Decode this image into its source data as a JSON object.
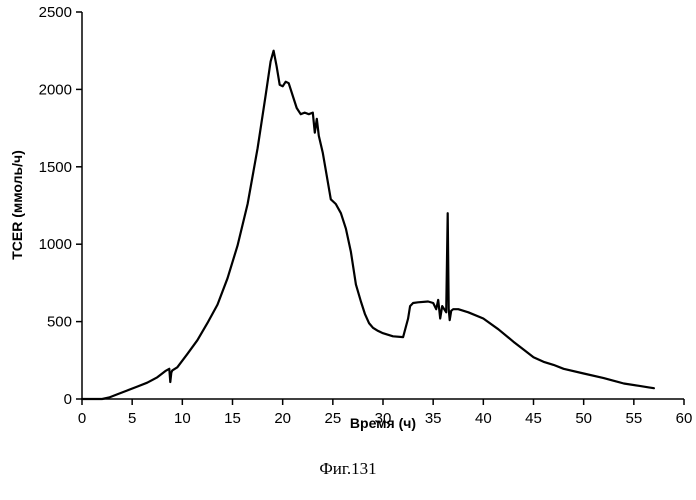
{
  "chart_data": {
    "type": "line",
    "xlabel": "Время (ч)",
    "ylabel": "TCER (ммоль/ч)",
    "xlim": [
      0,
      60
    ],
    "ylim": [
      0,
      2500
    ],
    "xticks": [
      0,
      5,
      10,
      15,
      20,
      25,
      30,
      35,
      40,
      45,
      50,
      55,
      60
    ],
    "yticks": [
      0,
      500,
      1000,
      1500,
      2000,
      2500
    ],
    "grid": false,
    "legend": "none",
    "line_color": "#000000",
    "series": [
      {
        "x": [
          0,
          2,
          2.7,
          3.5,
          4.5,
          5.5,
          6.5,
          7.5,
          8.3,
          8.7,
          8.8,
          8.9,
          9.0,
          9.5,
          10.5,
          11.5,
          12.5,
          13.5,
          14.5,
          15.5,
          16.5,
          17.5,
          18.3,
          18.8,
          19.1,
          19.4,
          19.7,
          20.0,
          20.3,
          20.6,
          21.0,
          21.4,
          21.8,
          22.2,
          22.6,
          23.0,
          23.2,
          23.4,
          23.6,
          24.0,
          24.4,
          24.8,
          25.3,
          25.8,
          26.3,
          26.8,
          27.3,
          27.8,
          28.2,
          28.6,
          29.0,
          29.5,
          30.0,
          31.0,
          32.0,
          32.5,
          32.7,
          33.0,
          33.5,
          34.5,
          35.0,
          35.3,
          35.5,
          35.7,
          35.9,
          36.1,
          36.3,
          36.45,
          36.55,
          36.65,
          36.8,
          37.0,
          37.5,
          38.5,
          40.0,
          41.5,
          43.0,
          44.0,
          45.0,
          46.0,
          47.0,
          48.0,
          50.0,
          52.0,
          54.0,
          55.5,
          56.5,
          57.0
        ],
        "y": [
          0,
          0,
          10,
          30,
          55,
          80,
          105,
          140,
          180,
          195,
          110,
          170,
          185,
          205,
          290,
          380,
          490,
          610,
          780,
          990,
          1260,
          1620,
          1960,
          2180,
          2250,
          2150,
          2030,
          2020,
          2050,
          2040,
          1960,
          1880,
          1840,
          1850,
          1840,
          1850,
          1720,
          1810,
          1700,
          1590,
          1440,
          1290,
          1260,
          1200,
          1100,
          950,
          740,
          630,
          550,
          490,
          460,
          440,
          425,
          405,
          400,
          520,
          600,
          620,
          625,
          630,
          620,
          580,
          640,
          520,
          600,
          580,
          560,
          1200,
          580,
          510,
          570,
          580,
          580,
          560,
          520,
          450,
          370,
          320,
          270,
          240,
          220,
          195,
          165,
          135,
          100,
          85,
          75,
          70
        ]
      }
    ]
  },
  "caption": "Фиг.131"
}
